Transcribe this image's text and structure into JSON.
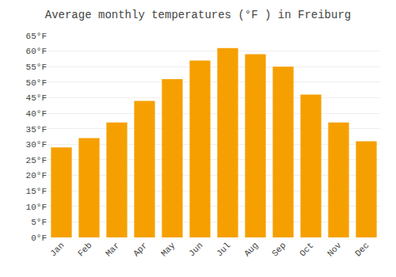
{
  "chart_data": {
    "type": "bar",
    "title": "Average monthly temperatures (°F ) in Freiburg",
    "categories": [
      "Jan",
      "Feb",
      "Mar",
      "Apr",
      "May",
      "Jun",
      "Jul",
      "Aug",
      "Sep",
      "Oct",
      "Nov",
      "Dec"
    ],
    "values": [
      29,
      32,
      37,
      44,
      51,
      57,
      61,
      59,
      55,
      46,
      37,
      31
    ],
    "color": "#F5A000",
    "ylim": [
      0,
      65
    ],
    "yticks": [
      {
        "value": 0,
        "label": "0°F"
      },
      {
        "value": 5,
        "label": "5°F"
      },
      {
        "value": 10,
        "label": "10°F"
      },
      {
        "value": 15,
        "label": "15°F"
      },
      {
        "value": 20,
        "label": "20°F"
      },
      {
        "value": 25,
        "label": "25°F"
      },
      {
        "value": 30,
        "label": "30°F"
      },
      {
        "value": 35,
        "label": "35°F"
      },
      {
        "value": 40,
        "label": "40°F"
      },
      {
        "value": 45,
        "label": "45°F"
      },
      {
        "value": 50,
        "label": "50°F"
      },
      {
        "value": 55,
        "label": "55°F"
      },
      {
        "value": 60,
        "label": "60°F"
      },
      {
        "value": 65,
        "label": "65°F"
      }
    ],
    "grid": true
  }
}
